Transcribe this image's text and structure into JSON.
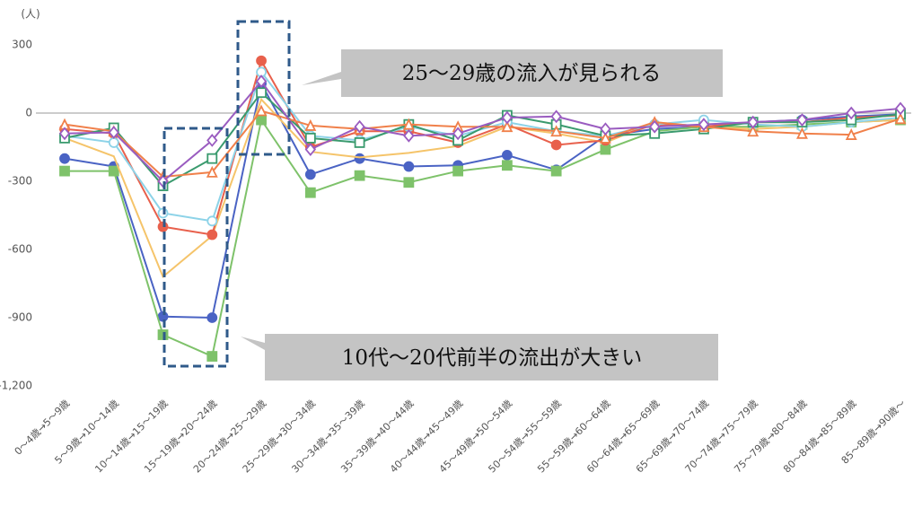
{
  "chart_data": {
    "type": "line",
    "unit_label": "(人)",
    "categories": [
      "0～4歳→5～9歳",
      "5～9歳→10～14歳",
      "10～14歳→15～19歳",
      "15～19歳→20～24歳",
      "20～24歳→25～29歳",
      "25～29歳→30～34歳",
      "30～34歳→35～39歳",
      "35～39歳→40～44歳",
      "40～44歳→45～49歳",
      "45～49歳→50～54歳",
      "50～54歳→55～59歳",
      "55～59歳→60～64歳",
      "60～64歳→65～69歳",
      "65～69歳→70～74歳",
      "70～74歳→75～79歳",
      "75～79歳→80～84歳",
      "80～84歳→85～89歳",
      "85～89歳→90歳～"
    ],
    "ylim": [
      -1200,
      350
    ],
    "yticks": [
      300,
      0,
      -300,
      -600,
      -900,
      {
        "value": -1200,
        "label": "-1,200"
      }
    ],
    "series": [
      {
        "color": "#4a63c4",
        "marker": "circle",
        "filled": true,
        "values": [
          -200,
          -235,
          -895,
          -900,
          130,
          -270,
          -200,
          -235,
          -230,
          -185,
          -250,
          -100,
          -70,
          -60,
          -40,
          -30,
          -15,
          -5
        ]
      },
      {
        "color": "#7ec26a",
        "marker": "square",
        "filled": true,
        "values": [
          -255,
          -255,
          -975,
          -1070,
          -30,
          -350,
          -275,
          -305,
          -255,
          -230,
          -255,
          -160,
          -80,
          -60,
          -60,
          -50,
          -40,
          -30
        ]
      },
      {
        "color": "#f5c46a",
        "marker": "none",
        "filled": false,
        "values": [
          -110,
          -190,
          -720,
          -540,
          60,
          -170,
          -195,
          -175,
          -145,
          -60,
          -90,
          -130,
          -40,
          -60,
          -70,
          -60,
          -40,
          -30
        ]
      },
      {
        "color": "#e8604c",
        "marker": "circle",
        "filled": true,
        "values": [
          -70,
          -90,
          -500,
          -535,
          230,
          -150,
          -80,
          -80,
          -130,
          -50,
          -140,
          -120,
          -50,
          -60,
          -40,
          -40,
          -20,
          -10
        ]
      },
      {
        "color": "#8dd3e8",
        "marker": "circle",
        "filled": false,
        "values": [
          -100,
          -130,
          -440,
          -475,
          180,
          -100,
          -120,
          -60,
          -100,
          -40,
          -80,
          -100,
          -50,
          -30,
          -50,
          -60,
          -40,
          -20
        ]
      },
      {
        "color": "#3a9a6e",
        "marker": "square",
        "filled": false,
        "values": [
          -110,
          -65,
          -320,
          -200,
          90,
          -110,
          -130,
          -50,
          -120,
          -10,
          -50,
          -100,
          -90,
          -70,
          -40,
          -40,
          -30,
          -5
        ]
      },
      {
        "color": "#f0804a",
        "marker": "triangle",
        "filled": false,
        "values": [
          -50,
          -80,
          -280,
          -260,
          10,
          -55,
          -70,
          -50,
          -60,
          -60,
          -80,
          -110,
          -40,
          -60,
          -80,
          -90,
          -95,
          -25
        ]
      },
      {
        "color": "#9a5cc0",
        "marker": "diamond",
        "filled": false,
        "values": [
          -90,
          -85,
          -300,
          -120,
          140,
          -160,
          -60,
          -100,
          -90,
          -20,
          -15,
          -70,
          -60,
          -50,
          -40,
          -30,
          0,
          20
        ]
      }
    ],
    "annotations": [
      "25～29歳の流入が見られる",
      "10代～20代前半の流出が大きい"
    ]
  }
}
